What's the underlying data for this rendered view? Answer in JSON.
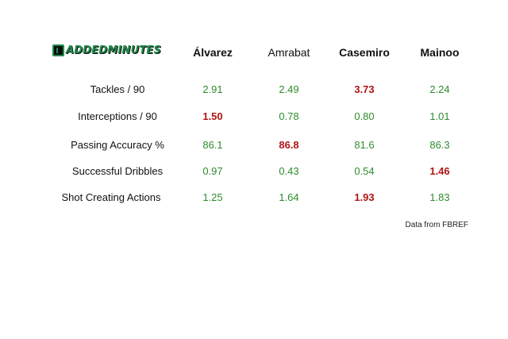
{
  "brand": {
    "name": "ADDEDMINUTES"
  },
  "players": [
    {
      "name": "Álvarez",
      "bold": true
    },
    {
      "name": "Amrabat",
      "bold": false
    },
    {
      "name": "Casemiro",
      "bold": true
    },
    {
      "name": "Mainoo",
      "bold": true
    }
  ],
  "stats": [
    {
      "label": "Tackles / 90",
      "values": [
        "2.91",
        "2.49",
        "3.73",
        "2.24"
      ],
      "best_index": 2
    },
    {
      "label": "Interceptions / 90",
      "values": [
        "1.50",
        "0.78",
        "0.80",
        "1.01"
      ],
      "best_index": 0
    },
    {
      "label": "Passing Accuracy %",
      "values": [
        "86.1",
        "86.8",
        "81.6",
        "86.3"
      ],
      "best_index": 1
    },
    {
      "label": "Successful Dribbles",
      "values": [
        "0.97",
        "0.43",
        "0.54",
        "1.46"
      ],
      "best_index": 3
    },
    {
      "label": "Shot Creating Actions",
      "values": [
        "1.25",
        "1.64",
        "1.93",
        "1.83"
      ],
      "best_index": 2
    }
  ],
  "colors": {
    "normal": "#2e8b2e",
    "best": "#b01414",
    "brand": "#1f8a4c"
  },
  "source": "Data from FBREF"
}
